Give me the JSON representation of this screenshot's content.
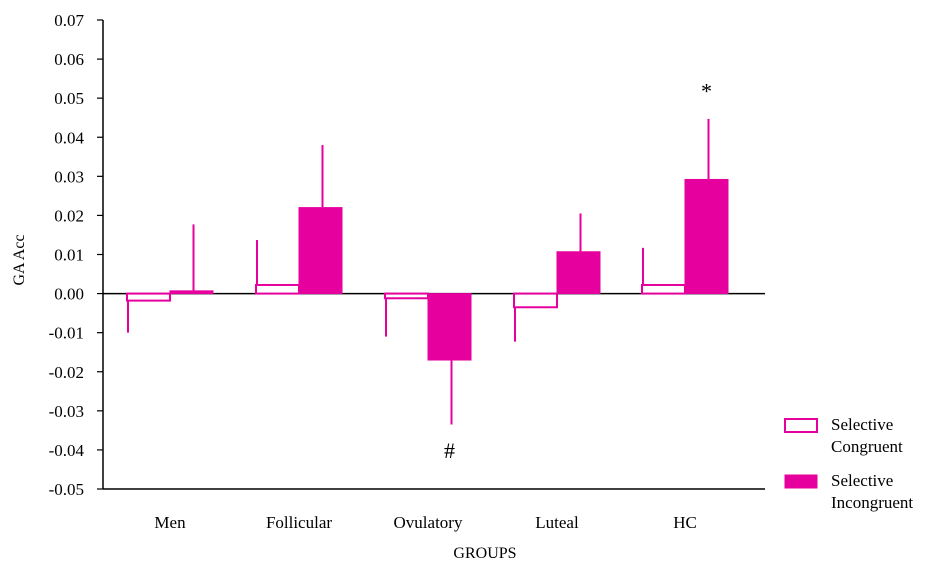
{
  "chart_data": {
    "type": "bar",
    "title": "",
    "xlabel": "GROUPS",
    "ylabel": "GA Acc",
    "ylim": [
      -0.05,
      0.07
    ],
    "yticks": [
      0.07,
      0.06,
      0.05,
      0.04,
      0.03,
      0.02,
      0.01,
      0.0,
      -0.01,
      -0.02,
      -0.03,
      -0.04,
      -0.05
    ],
    "ytick_labels": [
      "0.07",
      "0.06",
      "0.05",
      "0.04",
      "0.03",
      "0.02",
      "0.01",
      "0.00",
      "-0.01",
      "-0.02",
      "-0.03",
      "-0.04",
      "-0.05"
    ],
    "categories": [
      "Men",
      "Follicular",
      "Ovulatory",
      "Luteal",
      "HC"
    ],
    "series": [
      {
        "name": "Selective Congruent",
        "name_lines": [
          "Selective",
          "Congruent"
        ],
        "fill": "none",
        "values": [
          -0.0018,
          0.0022,
          -0.0012,
          -0.0035,
          0.0022
        ],
        "error_end": [
          -0.01,
          0.0137,
          -0.011,
          -0.0123,
          0.0117
        ]
      },
      {
        "name": "Selective Incongruent",
        "name_lines": [
          "Selective",
          "Incongruent"
        ],
        "fill": "solid",
        "values": [
          0.0007,
          0.022,
          -0.017,
          0.0107,
          0.0292
        ],
        "error_end": [
          0.0177,
          0.038,
          -0.0335,
          0.0205,
          0.0447
        ]
      }
    ],
    "annotations": [
      {
        "text": "*",
        "category": "HC",
        "series": 1,
        "y": 0.052
      },
      {
        "text": "#",
        "category": "Ovulatory",
        "series": 1,
        "y": -0.04
      }
    ],
    "legend": "bottom-right",
    "grid": false,
    "colors": {
      "accent": "#e6009e",
      "axis": "#000000"
    }
  }
}
